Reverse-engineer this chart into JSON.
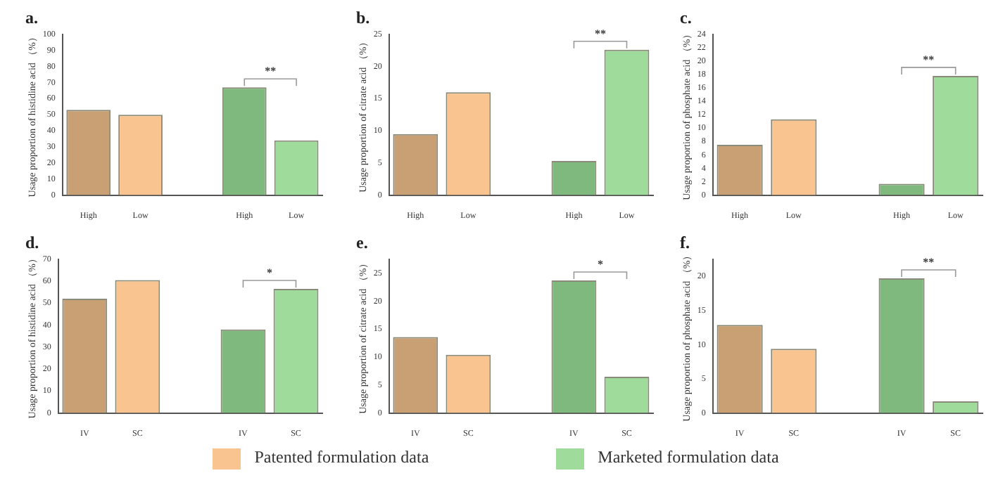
{
  "chart_data": [
    {
      "type": "bar",
      "title": "a.",
      "ylabel": "Usage proportion of histidine acid （%）",
      "categories": [
        "High",
        "Low",
        null,
        "High",
        "Low"
      ],
      "ylim": [
        0,
        100
      ],
      "yticks": [
        0,
        10,
        20,
        30,
        40,
        50,
        60,
        70,
        80,
        90,
        100
      ],
      "annotations": [
        "**"
      ],
      "series": [
        {
          "colors": [
            "#c9a074",
            "#f9c48f",
            null,
            null,
            null
          ],
          "values": [
            53,
            50,
            null,
            null,
            null
          ]
        },
        {
          "colors": [
            null,
            null,
            null,
            "#7fb97d",
            "#9fdc9b"
          ],
          "values": [
            null,
            null,
            null,
            67,
            34
          ]
        }
      ]
    },
    {
      "type": "bar",
      "title": "b.",
      "ylabel": "Usage proportion of citrate acid （%）",
      "categories": [
        "High",
        "Low",
        null,
        "High",
        "Low"
      ],
      "ylim": [
        0,
        25
      ],
      "yticks": [
        0,
        5,
        10,
        15,
        20,
        25
      ],
      "annotations": [
        "**"
      ],
      "series": [
        {
          "colors": [
            "#c9a074",
            "#f9c48f",
            null,
            null,
            null
          ],
          "values": [
            9.5,
            16,
            null,
            null,
            null
          ]
        },
        {
          "colors": [
            null,
            null,
            null,
            "#7fb97d",
            "#9fdc9b"
          ],
          "values": [
            null,
            null,
            null,
            5.3,
            22.6
          ]
        }
      ]
    },
    {
      "type": "bar",
      "title": "c.",
      "ylabel": "Usage proportion of phosphate acid （%）",
      "categories": [
        "High",
        "Low",
        null,
        "High",
        "Low"
      ],
      "ylim": [
        0,
        24
      ],
      "yticks": [
        0,
        2,
        4,
        6,
        8,
        10,
        12,
        14,
        16,
        18,
        20,
        22,
        24
      ],
      "annotations": [
        "**"
      ],
      "series": [
        {
          "colors": [
            "#c9a074",
            "#f9c48f",
            null,
            null,
            null
          ],
          "values": [
            7.5,
            11.3,
            null,
            null,
            null
          ]
        },
        {
          "colors": [
            null,
            null,
            null,
            "#7fb97d",
            "#9fdc9b"
          ],
          "values": [
            null,
            null,
            null,
            1.7,
            17.8
          ]
        }
      ]
    },
    {
      "type": "bar",
      "title": "d.",
      "ylabel": "Usage proportion of histidine acid （%）",
      "categories": [
        "IV",
        "SC",
        null,
        "IV",
        "SC"
      ],
      "ylim": [
        0,
        70
      ],
      "yticks": [
        0,
        10,
        20,
        30,
        40,
        50,
        60,
        70
      ],
      "annotations": [
        "*"
      ],
      "series": [
        {
          "colors": [
            "#c9a074",
            "#f9c48f",
            null,
            null,
            null
          ],
          "values": [
            52,
            60.5,
            null,
            null,
            null
          ]
        },
        {
          "colors": [
            null,
            null,
            null,
            "#7fb97d",
            "#9fdc9b"
          ],
          "values": [
            null,
            null,
            null,
            38,
            56.5
          ]
        }
      ]
    },
    {
      "type": "bar",
      "title": "e.",
      "ylabel": "Usage proportion of citrate acid （%）",
      "categories": [
        "IV",
        "SC",
        null,
        "IV",
        "SC"
      ],
      "ylim": [
        0,
        27.5
      ],
      "yticks": [
        0,
        5,
        10,
        15,
        20,
        25
      ],
      "annotations": [
        "*"
      ],
      "legend": "bottom",
      "series": [
        {
          "name": "Patented formulation data",
          "color": "#f9c48f",
          "colors": [
            "#c9a074",
            "#f9c48f",
            null,
            null,
            null
          ],
          "values": [
            13.6,
            10.4,
            null,
            null,
            null
          ]
        },
        {
          "name": "Marketed formulation data",
          "color": "#9fdc9b",
          "colors": [
            null,
            null,
            null,
            "#7fb97d",
            "#9fdc9b"
          ],
          "values": [
            null,
            null,
            null,
            23.7,
            6.5
          ]
        }
      ]
    },
    {
      "type": "bar",
      "title": "f.",
      "ylabel": "Usage proportion of phosphate acid （%）",
      "categories": [
        "IV",
        "SC",
        null,
        "IV",
        "SC"
      ],
      "ylim": [
        0,
        22.5
      ],
      "yticks": [
        0,
        5,
        10,
        15,
        20
      ],
      "annotations": [
        "**"
      ],
      "series": [
        {
          "colors": [
            "#c9a074",
            "#f9c48f",
            null,
            null,
            null
          ],
          "values": [
            12.9,
            9.4,
            null,
            null,
            null
          ]
        },
        {
          "colors": [
            null,
            null,
            null,
            "#7fb97d",
            "#9fdc9b"
          ],
          "values": [
            null,
            null,
            null,
            19.7,
            1.7
          ]
        }
      ]
    }
  ]
}
